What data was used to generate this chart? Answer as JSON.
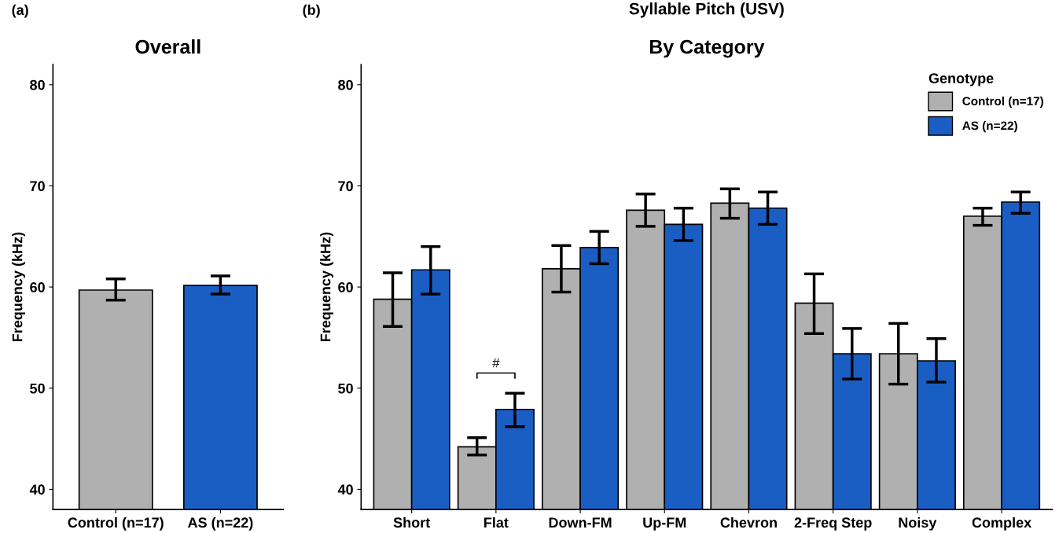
{
  "chart_data": [
    {
      "type": "bar",
      "title": "Overall",
      "ylabel": "Frequency (kHz)",
      "annotations": [
        "(a)"
      ],
      "categories": [
        "Control (n=17)",
        "AS (n=22)"
      ],
      "values": [
        59.7,
        60.15
      ],
      "colors": [
        "#b0b0b0",
        "#1a5ec4"
      ],
      "errors": [
        [
          58.7,
          60.8
        ],
        [
          59.3,
          61.1
        ]
      ],
      "ylim": [
        38,
        82
      ],
      "yticks": [
        40,
        50,
        60,
        70,
        80
      ],
      "grid": false,
      "legend": false
    },
    {
      "type": "bar",
      "title": "Syllable Pitch (USV)",
      "subtitle": "By Category",
      "ylabel": "Frequency (kHz)",
      "legend_title": "Genotype",
      "annotations": [
        "(b)",
        "#"
      ],
      "categories": [
        "Short",
        "Flat",
        "Down-FM",
        "Up-FM",
        "Chevron",
        "2-Freq Step",
        "Noisy",
        "Complex"
      ],
      "series": [
        {
          "name": "Control (n=17)",
          "color": "#b0b0b0",
          "values": [
            58.8,
            44.2,
            61.8,
            67.6,
            68.3,
            58.4,
            53.4,
            67.0
          ],
          "errors": [
            [
              56.1,
              61.4
            ],
            [
              43.4,
              45.1
            ],
            [
              59.5,
              64.1
            ],
            [
              66.0,
              69.2
            ],
            [
              66.8,
              69.7
            ],
            [
              55.4,
              61.3
            ],
            [
              50.4,
              56.4
            ],
            [
              66.1,
              67.8
            ]
          ]
        },
        {
          "name": "AS (n=22)",
          "color": "#1a5ec4",
          "values": [
            61.7,
            47.9,
            63.9,
            66.2,
            67.8,
            53.4,
            52.7,
            68.4
          ],
          "errors": [
            [
              59.3,
              64.0
            ],
            [
              46.2,
              49.5
            ],
            [
              62.3,
              65.5
            ],
            [
              64.6,
              67.8
            ],
            [
              66.2,
              69.4
            ],
            [
              50.9,
              55.9
            ],
            [
              50.6,
              54.9
            ],
            [
              67.3,
              69.4
            ]
          ]
        }
      ],
      "ylim": [
        38,
        82
      ],
      "yticks": [
        40,
        50,
        60,
        70,
        80
      ],
      "grid": false,
      "legend": "top right"
    }
  ]
}
